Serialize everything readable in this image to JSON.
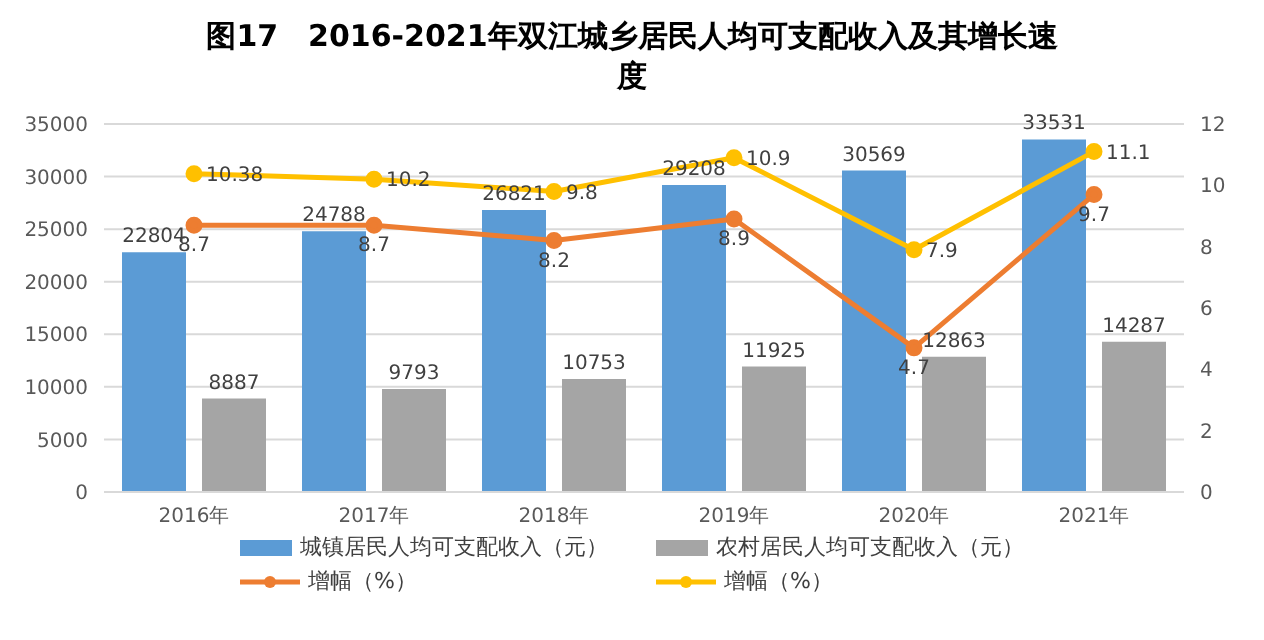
{
  "chart_data": {
    "type": "bar",
    "title": "图17　2016-2021年双江城乡居民人均可支配收入及其增长速度",
    "categories": [
      "2016年",
      "2017年",
      "2018年",
      "2019年",
      "2020年",
      "2021年"
    ],
    "series": [
      {
        "name": "城镇居民人均可支配收入（元）",
        "color": "#5b9bd5",
        "values": [
          22804,
          24788,
          26821,
          29208,
          30569,
          33531
        ]
      },
      {
        "name": "农村居民人均可支配收入（元）",
        "color": "#a5a5a5",
        "values": [
          8887,
          9793,
          10753,
          11925,
          12863,
          14287
        ]
      },
      {
        "name": "增幅（%）",
        "type": "line",
        "axis": "y2",
        "color": "#ed7d31",
        "values": [
          8.7,
          8.7,
          8.2,
          8.9,
          4.7,
          9.7
        ]
      },
      {
        "name": "增幅（%）",
        "type": "line",
        "axis": "y2",
        "color": "#ffc000",
        "values": [
          10.38,
          10.2,
          9.8,
          10.9,
          7.9,
          11.1
        ]
      }
    ],
    "ylim": [
      0,
      35000
    ],
    "yticks": [
      0,
      5000,
      10000,
      15000,
      20000,
      25000,
      30000,
      35000
    ],
    "y2lim": [
      0,
      12
    ],
    "y2ticks": [
      0,
      2,
      4,
      6,
      8,
      10,
      12
    ],
    "grid": "y",
    "legend": "bottom",
    "marker": "circle",
    "line_style": "solid",
    "data_labels": true
  }
}
